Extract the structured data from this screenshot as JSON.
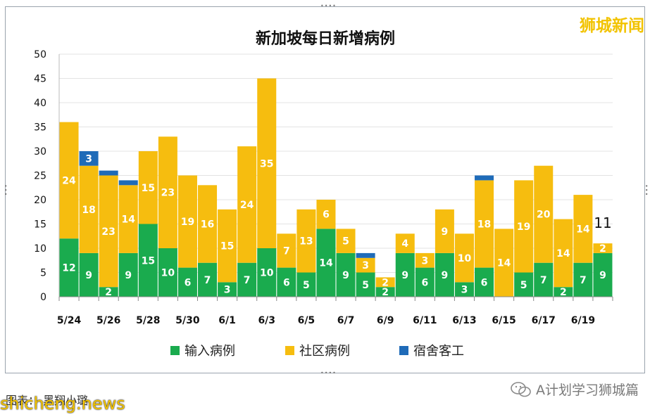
{
  "watermark": "狮城新闻",
  "footer": {
    "credit": "图表： 黑翔小璐",
    "site": "shicheng.news",
    "wechat": "A计划学习狮城篇"
  },
  "colors": {
    "imported": "#1aab4e",
    "community": "#f6bd0f",
    "dorm": "#1f6bb8"
  },
  "chart_data": {
    "type": "bar",
    "stacked": true,
    "title": "新加坡每日新增病例",
    "ylim": [
      0,
      50
    ],
    "yticks": [
      0,
      5,
      10,
      15,
      20,
      25,
      30,
      35,
      40,
      45,
      50
    ],
    "categories": [
      "5/24",
      "5/25",
      "5/26",
      "5/27",
      "5/28",
      "5/29",
      "5/30",
      "5/31",
      "6/1",
      "6/2",
      "6/3",
      "6/4",
      "6/5",
      "6/6",
      "6/7",
      "6/8",
      "6/9",
      "6/10",
      "6/11",
      "6/12",
      "6/13",
      "6/14",
      "6/15",
      "6/16",
      "6/17",
      "6/18",
      "6/19",
      "6/20"
    ],
    "xtick_labels": [
      "5/24",
      "5/26",
      "5/28",
      "5/30",
      "6/1",
      "6/3",
      "6/5",
      "6/7",
      "6/9",
      "6/11",
      "6/13",
      "6/15",
      "6/17",
      "6/19"
    ],
    "series": [
      {
        "name": "输入病例",
        "values": [
          12,
          9,
          2,
          9,
          15,
          10,
          6,
          7,
          3,
          7,
          10,
          6,
          5,
          14,
          9,
          5,
          2,
          9,
          6,
          9,
          3,
          6,
          0,
          5,
          7,
          2,
          7,
          9
        ]
      },
      {
        "name": "社区病例",
        "values": [
          24,
          18,
          23,
          14,
          15,
          23,
          19,
          16,
          15,
          24,
          35,
          7,
          13,
          6,
          5,
          3,
          2,
          4,
          3,
          9,
          10,
          18,
          14,
          19,
          20,
          14,
          14,
          2
        ]
      },
      {
        "name": "宿舍客工",
        "values": [
          0,
          3,
          1,
          1,
          0,
          0,
          0,
          0,
          0,
          0,
          0,
          0,
          0,
          0,
          0,
          1,
          0,
          0,
          0,
          0,
          0,
          1,
          0,
          0,
          0,
          0,
          0,
          0
        ]
      }
    ],
    "data_labels": {
      "输入病例": [
        "12",
        "9",
        "2",
        "9",
        "15",
        "10",
        "6",
        "7",
        "3",
        "7",
        "10",
        "6",
        "5",
        "14",
        "9",
        "5",
        "2",
        "9",
        "6",
        "9",
        "3",
        "6",
        "",
        "5",
        "7",
        "2",
        "7",
        "9"
      ],
      "社区病例": [
        "24",
        "18",
        "23",
        "14",
        "15",
        "23",
        "19",
        "16",
        "15",
        "24",
        "35",
        "7",
        "13",
        "6",
        "5",
        "3",
        "2",
        "4",
        "3",
        "9",
        "10",
        "18",
        "14",
        "19",
        "20",
        "14",
        "14",
        "2"
      ],
      "宿舍客工": [
        "",
        "3",
        "",
        "",
        "",
        "",
        "",
        "",
        "",
        "",
        "",
        "",
        "",
        "",
        "",
        "",
        "",
        "",
        "",
        "",
        "",
        "",
        "",
        "",
        "",
        "",
        "",
        ""
      ]
    },
    "total_annotation": {
      "category": "6/20",
      "text": "11"
    },
    "legend_position": "bottom",
    "grid": true
  }
}
